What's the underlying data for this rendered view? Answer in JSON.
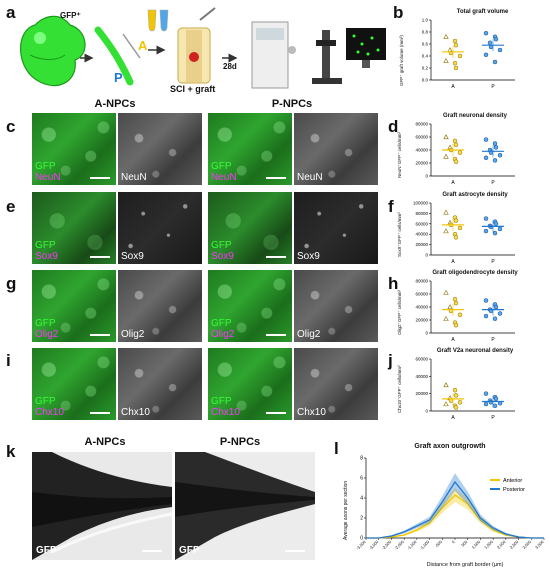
{
  "panels": {
    "a": {
      "label": "a",
      "gfp_label": "GFP⁺",
      "anterior_letter": "A",
      "posterior_letter": "P",
      "graft_label": "SCI + graft",
      "timepoint": "28d"
    },
    "b": {
      "label": "b"
    },
    "c": {
      "label": "c"
    },
    "d": {
      "label": "d"
    },
    "e": {
      "label": "e"
    },
    "f": {
      "label": "f"
    },
    "g": {
      "label": "g"
    },
    "h": {
      "label": "h"
    },
    "i": {
      "label": "i"
    },
    "j": {
      "label": "j"
    },
    "k": {
      "label": "k"
    },
    "l": {
      "label": "l"
    }
  },
  "columns": {
    "left": "A-NPCs",
    "right": "P-NPCs"
  },
  "microscopy_rows": [
    {
      "gfp": "GFP",
      "marker": "NeuN",
      "gray": "NeuN"
    },
    {
      "gfp": "GFP",
      "marker": "Sox9",
      "gray": "Sox9"
    },
    {
      "gfp": "GFP",
      "marker": "Olig2",
      "gray": "Olig2"
    },
    {
      "gfp": "GFP",
      "marker": "Chx10",
      "gray": "Chx10"
    }
  ],
  "k_panel": {
    "left_title": "A-NPCs",
    "right_title": "P-NPCs",
    "left_label": "GFP",
    "right_label": "GFP"
  },
  "colors": {
    "anterior": "#f2c500",
    "posterior": "#1f77d0",
    "gfp": "#33ff33",
    "marker": "#ff33ff"
  },
  "chart_data": [
    {
      "id": "b",
      "type": "scatter",
      "title": "Total graft volume",
      "ylabel": "GFP⁺ graft volume (mm³)",
      "categories": [
        "A",
        "P"
      ],
      "ylim": [
        0,
        1.0
      ],
      "yticks": [
        "0.0",
        "0.2",
        "0.4",
        "0.6",
        "0.8",
        "1.0"
      ],
      "series": [
        {
          "values": [
            0.72,
            0.65,
            0.58,
            0.5,
            0.45,
            0.4,
            0.32,
            0.28,
            0.2
          ],
          "mean": 0.47
        },
        {
          "values": [
            0.78,
            0.72,
            0.68,
            0.62,
            0.55,
            0.5,
            0.42,
            0.3
          ],
          "mean": 0.58
        }
      ]
    },
    {
      "id": "d",
      "type": "scatter",
      "title": "Graft neuronal density",
      "ylabel": "NeuN⁺GFP⁺ cells/mm³",
      "categories": [
        "A",
        "P"
      ],
      "ylim": [
        0,
        80000
      ],
      "yticks": [
        "0",
        "20000",
        "40000",
        "60000",
        "80000"
      ],
      "series": [
        {
          "values": [
            60000,
            54000,
            48000,
            44000,
            40000,
            36000,
            30000,
            26000,
            22000
          ],
          "mean": 40000
        },
        {
          "values": [
            56000,
            50000,
            44000,
            40000,
            36000,
            32000,
            28000,
            24000
          ],
          "mean": 38000
        }
      ]
    },
    {
      "id": "f",
      "type": "scatter",
      "title": "Graft astrocyte density",
      "ylabel": "Sox9⁺GFP⁺ cells/mm³",
      "categories": [
        "A",
        "P"
      ],
      "ylim": [
        0,
        100000
      ],
      "yticks": [
        "0",
        "20000",
        "40000",
        "60000",
        "80000",
        "100000"
      ],
      "series": [
        {
          "values": [
            82000,
            72000,
            66000,
            62000,
            58000,
            52000,
            46000,
            40000,
            34000
          ],
          "mean": 58000
        },
        {
          "values": [
            70000,
            64000,
            60000,
            56000,
            54000,
            50000,
            46000,
            42000
          ],
          "mean": 55000
        }
      ]
    },
    {
      "id": "h",
      "type": "scatter",
      "title": "Graft oligodendrocyte density",
      "ylabel": "Olig2⁺GFP⁺ cells/mm³",
      "categories": [
        "A",
        "P"
      ],
      "ylim": [
        0,
        80000
      ],
      "yticks": [
        "0",
        "20000",
        "40000",
        "60000",
        "80000"
      ],
      "series": [
        {
          "values": [
            62000,
            52000,
            46000,
            40000,
            34000,
            28000,
            22000,
            16000,
            12000
          ],
          "mean": 36000
        },
        {
          "values": [
            50000,
            44000,
            40000,
            36000,
            34000,
            30000,
            26000,
            22000
          ],
          "mean": 36000
        }
      ]
    },
    {
      "id": "j",
      "type": "scatter",
      "title": "Graft V2a neuronal density",
      "ylabel": "Chx10⁺GFP⁺ cells/mm³",
      "categories": [
        "A",
        "P"
      ],
      "ylim": [
        0,
        60000
      ],
      "yticks": [
        "0",
        "20000",
        "40000",
        "60000"
      ],
      "series": [
        {
          "values": [
            30000,
            24000,
            18000,
            15000,
            12000,
            10000,
            8000,
            6000,
            4000
          ],
          "mean": 14000
        },
        {
          "values": [
            20000,
            16000,
            14000,
            12000,
            10000,
            9000,
            8000,
            6000
          ],
          "mean": 11000
        }
      ]
    },
    {
      "id": "l",
      "type": "line",
      "title": "Graft axon outgrowth",
      "xlabel": "Distance from graft border (µm)",
      "ylabel": "Average axons per section",
      "x": [
        -3500,
        -3000,
        -2500,
        -2000,
        -1500,
        -1000,
        -500,
        0,
        500,
        1000,
        1500,
        2000,
        2500,
        3000,
        3500
      ],
      "xticks": [
        "-3,500",
        "-3,000",
        "-2,500",
        "-2,000",
        "-1,500",
        "-1,000",
        "-500",
        "0",
        "500",
        "1,000",
        "1,500",
        "2,000",
        "2,500",
        "3,000",
        "3,500"
      ],
      "ylim": [
        0,
        8
      ],
      "yticks": [
        "0",
        "2",
        "4",
        "6",
        "8"
      ],
      "legend": "top-right",
      "series": [
        {
          "name": "Anterior",
          "values": [
            0,
            0,
            0.1,
            0.3,
            0.8,
            1.5,
            3.0,
            4.3,
            3.4,
            1.8,
            0.8,
            0.3,
            0.1,
            0,
            0
          ]
        },
        {
          "name": "Posterior",
          "values": [
            0,
            0,
            0.2,
            0.6,
            1.2,
            1.8,
            3.6,
            5.6,
            4.0,
            2.0,
            1.0,
            0.4,
            0.1,
            0,
            0
          ]
        }
      ]
    }
  ]
}
